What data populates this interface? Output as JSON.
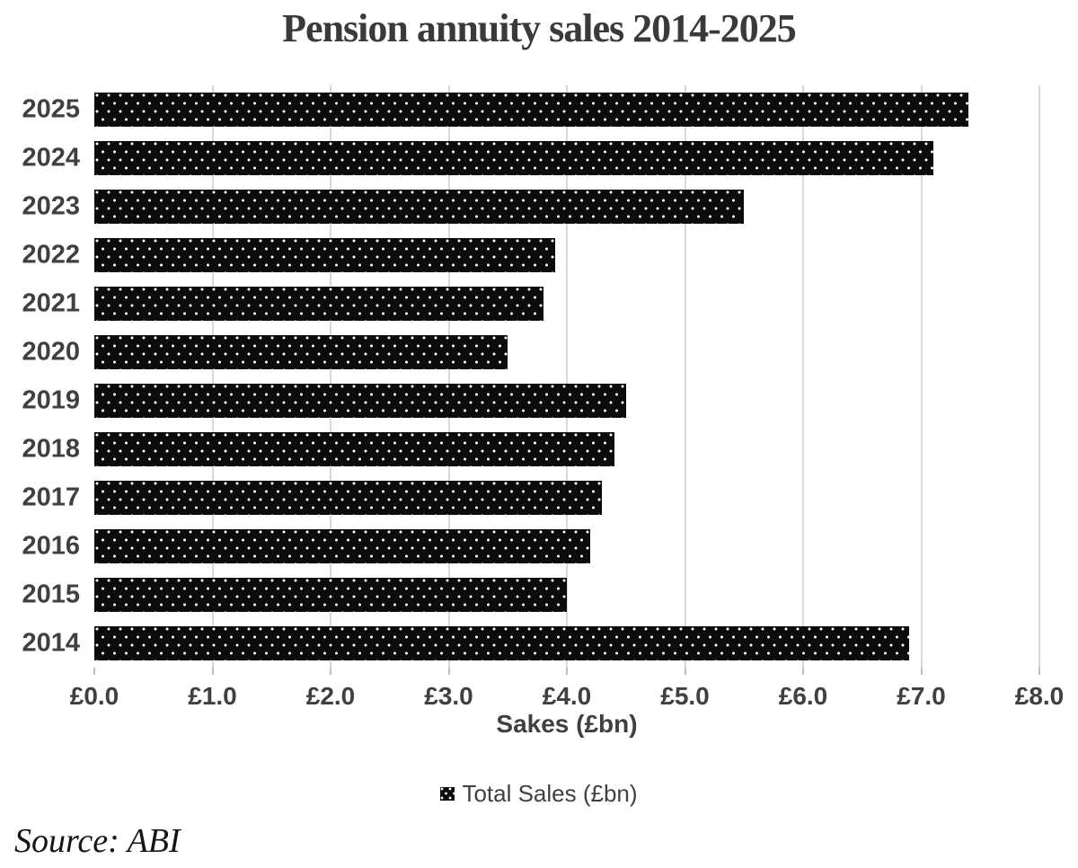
{
  "title": "Pension annuity sales 2014-2025",
  "chart_data": {
    "type": "bar",
    "orientation": "horizontal",
    "title": "Pension annuity sales 2014-2025",
    "categories": [
      "2025",
      "2024",
      "2023",
      "2022",
      "2021",
      "2020",
      "2019",
      "2018",
      "2017",
      "2016",
      "2015",
      "2014"
    ],
    "values": [
      7.4,
      7.1,
      5.5,
      3.9,
      3.8,
      3.5,
      4.5,
      4.4,
      4.3,
      4.2,
      4.0,
      6.9
    ],
    "series_name": "Total Sales (£bn)",
    "xlabel": "Sakes (£bn)",
    "ylabel": "",
    "xlim": [
      0,
      8
    ],
    "x_ticks": [
      "£0.0",
      "£1.0",
      "£2.0",
      "£3.0",
      "£4.0",
      "£5.0",
      "£6.0",
      "£7.0",
      "£8.0"
    ],
    "grid": true,
    "legend_position": "bottom",
    "bar_style": "black with white polka-dot pattern fill"
  },
  "legend": {
    "label": "Total Sales (£bn)"
  },
  "source": "Source: ABI",
  "colors": {
    "bar": "#0c0c0c",
    "bar_dot": "#ffffff",
    "gridline": "#d9d9d9",
    "tick": "#bfbfbf",
    "axis_text": "#404040",
    "title_text": "#3a3a3a"
  }
}
